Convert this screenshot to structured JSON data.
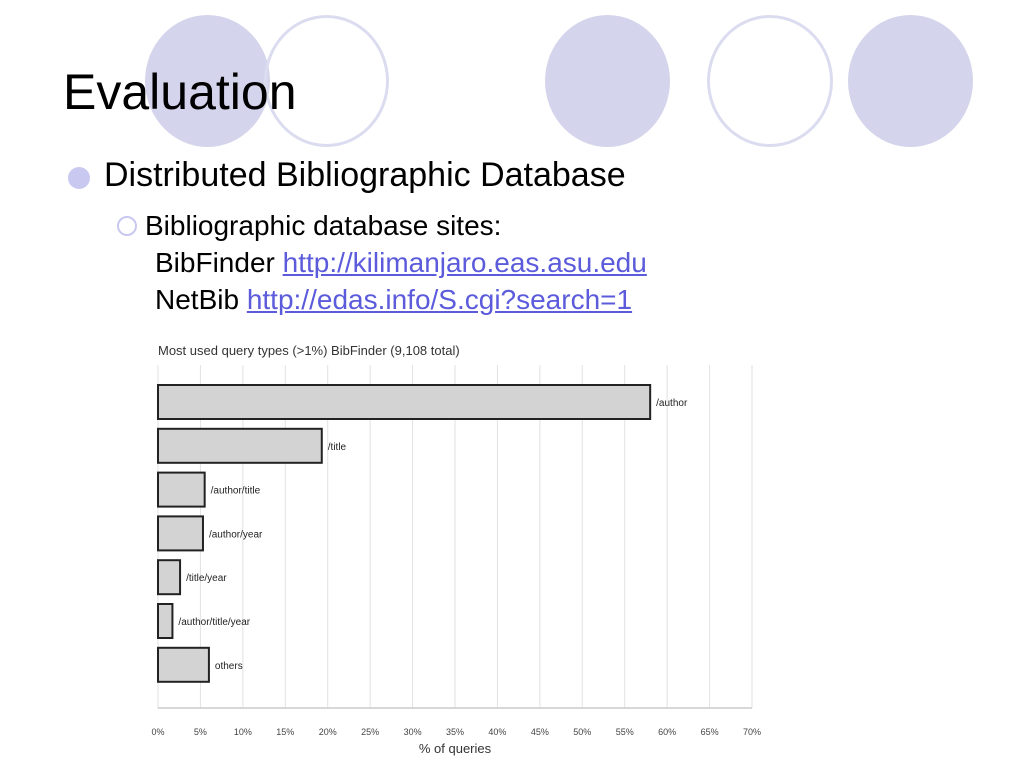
{
  "slide": {
    "title": "Evaluation",
    "bullet1": "Distributed Bibliographic Database",
    "bullet2": "Bibliographic database sites:",
    "sites": [
      {
        "name": "BibFinder",
        "url": "http://kilimanjaro.eas.asu.edu"
      },
      {
        "name": "NetBib",
        "url": "http://edas.info/S.cgi?search=1"
      }
    ]
  },
  "colors": {
    "accent": "#d4d4ec",
    "link": "#5b5bdc",
    "bar": "#d3d3d3"
  },
  "chart_data": {
    "type": "bar",
    "orientation": "horizontal",
    "title": "Most used query types (>1%) BibFinder (9,108 total)",
    "xlabel": "% of queries",
    "ylabel": "",
    "categories": [
      "/author",
      "/title",
      "/author/title",
      "/author/year",
      "/title/year",
      "/author/title/year",
      "others"
    ],
    "values": [
      58,
      19.3,
      5.5,
      5.3,
      2.6,
      1.7,
      6
    ],
    "xlim": [
      0,
      70
    ],
    "xticks": [
      "0%",
      "5%",
      "10%",
      "15%",
      "20%",
      "25%",
      "30%",
      "35%",
      "40%",
      "45%",
      "50%",
      "55%",
      "60%",
      "65%",
      "70%"
    ],
    "grid": true
  }
}
